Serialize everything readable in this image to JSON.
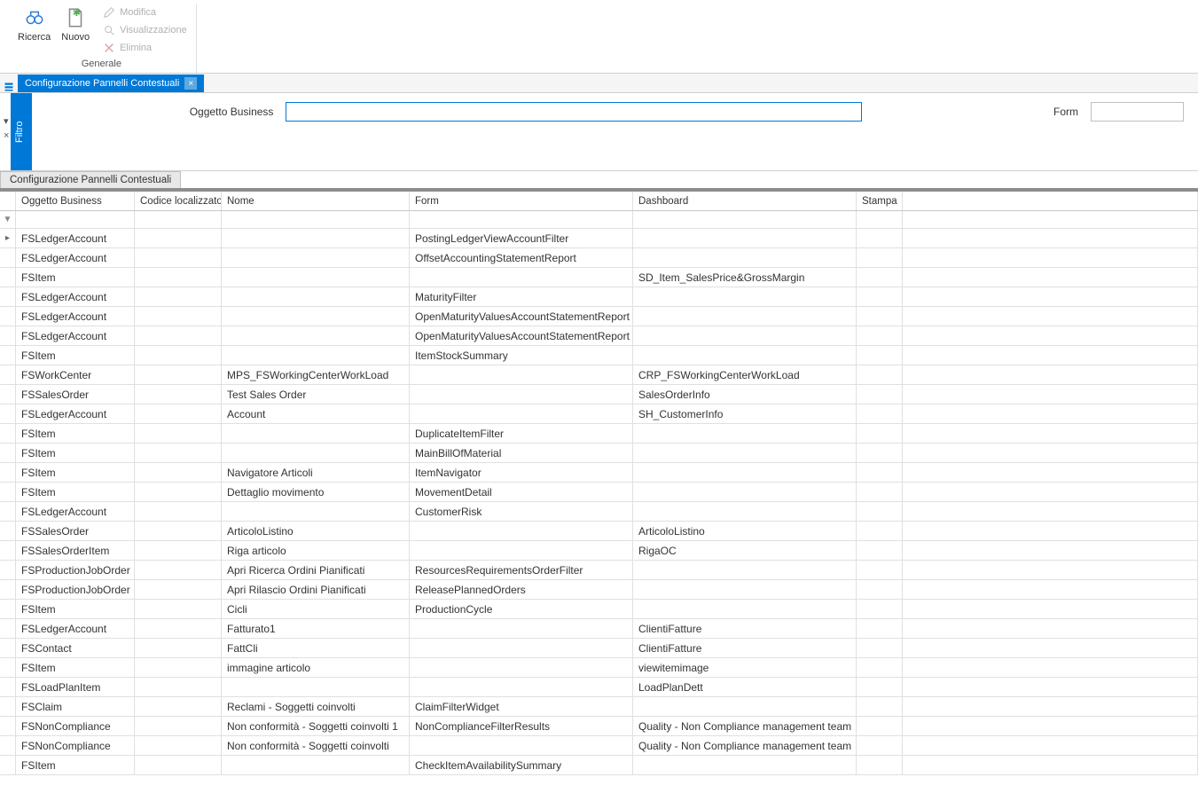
{
  "ribbon": {
    "search": "Ricerca",
    "new": "Nuovo",
    "edit": "Modifica",
    "view": "Visualizzazione",
    "delete": "Elimina",
    "group": "Generale"
  },
  "tab": {
    "title": "Configurazione Pannelli Contestuali"
  },
  "filter": {
    "businessLabel": "Oggetto Business",
    "businessValue": "",
    "formLabel": "Form",
    "formValue": "",
    "sideLabel": "Filtro"
  },
  "section": {
    "tab": "Configurazione Pannelli Contestuali"
  },
  "grid": {
    "columns": {
      "oggetto": "Oggetto Business",
      "codice": "Codice localizzato",
      "nome": "Nome",
      "form": "Form",
      "dashboard": "Dashboard",
      "stampa": "Stampa"
    },
    "rows": [
      {
        "ob": "FSLedgerAccount",
        "cl": "",
        "nome": "",
        "form": "PostingLedgerViewAccountFilter",
        "dash": "",
        "st": "",
        "caret": true
      },
      {
        "ob": "FSLedgerAccount",
        "cl": "",
        "nome": "",
        "form": "OffsetAccountingStatementReport",
        "dash": "",
        "st": ""
      },
      {
        "ob": "FSItem",
        "cl": "",
        "nome": "",
        "form": "",
        "dash": "SD_Item_SalesPrice&GrossMargin",
        "st": ""
      },
      {
        "ob": "FSLedgerAccount",
        "cl": "",
        "nome": "",
        "form": "MaturityFilter",
        "dash": "",
        "st": ""
      },
      {
        "ob": "FSLedgerAccount",
        "cl": "",
        "nome": "",
        "form": "OpenMaturityValuesAccountStatementReport",
        "dash": "",
        "st": ""
      },
      {
        "ob": "FSLedgerAccount",
        "cl": "",
        "nome": "",
        "form": "OpenMaturityValuesAccountStatementReport",
        "dash": "",
        "st": ""
      },
      {
        "ob": "FSItem",
        "cl": "",
        "nome": "",
        "form": "ItemStockSummary",
        "dash": "",
        "st": ""
      },
      {
        "ob": "FSWorkCenter",
        "cl": "",
        "nome": "MPS_FSWorkingCenterWorkLoad",
        "form": "",
        "dash": "CRP_FSWorkingCenterWorkLoad",
        "st": ""
      },
      {
        "ob": "FSSalesOrder",
        "cl": "",
        "nome": "Test Sales Order",
        "form": "",
        "dash": "SalesOrderInfo",
        "st": ""
      },
      {
        "ob": "FSLedgerAccount",
        "cl": "",
        "nome": "Account",
        "form": "",
        "dash": "SH_CustomerInfo",
        "st": ""
      },
      {
        "ob": "FSItem",
        "cl": "",
        "nome": "",
        "form": "DuplicateItemFilter",
        "dash": "",
        "st": ""
      },
      {
        "ob": "FSItem",
        "cl": "",
        "nome": "",
        "form": "MainBillOfMaterial",
        "dash": "",
        "st": ""
      },
      {
        "ob": "FSItem",
        "cl": "",
        "nome": "Navigatore Articoli",
        "form": "ItemNavigator",
        "dash": "",
        "st": ""
      },
      {
        "ob": "FSItem",
        "cl": "",
        "nome": "Dettaglio movimento",
        "form": "MovementDetail",
        "dash": "",
        "st": ""
      },
      {
        "ob": "FSLedgerAccount",
        "cl": "",
        "nome": "",
        "form": "CustomerRisk",
        "dash": "",
        "st": ""
      },
      {
        "ob": "FSSalesOrder",
        "cl": "",
        "nome": "ArticoloListino",
        "form": "",
        "dash": "ArticoloListino",
        "st": ""
      },
      {
        "ob": "FSSalesOrderItem",
        "cl": "",
        "nome": "Riga articolo",
        "form": "",
        "dash": "RigaOC",
        "st": ""
      },
      {
        "ob": "FSProductionJobOrder",
        "cl": "",
        "nome": "Apri Ricerca Ordini Pianificati",
        "form": "ResourcesRequirementsOrderFilter",
        "dash": "",
        "st": ""
      },
      {
        "ob": "FSProductionJobOrder",
        "cl": "",
        "nome": "Apri Rilascio Ordini Pianificati",
        "form": "ReleasePlannedOrders",
        "dash": "",
        "st": ""
      },
      {
        "ob": "FSItem",
        "cl": "",
        "nome": "Cicli",
        "form": "ProductionCycle",
        "dash": "",
        "st": ""
      },
      {
        "ob": "FSLedgerAccount",
        "cl": "",
        "nome": "Fatturato1",
        "form": "",
        "dash": "ClientiFatture",
        "st": ""
      },
      {
        "ob": "FSContact",
        "cl": "",
        "nome": "FattCli",
        "form": "",
        "dash": "ClientiFatture",
        "st": ""
      },
      {
        "ob": "FSItem",
        "cl": "",
        "nome": "immagine articolo",
        "form": "",
        "dash": "viewitemimage",
        "st": ""
      },
      {
        "ob": "FSLoadPlanItem",
        "cl": "",
        "nome": "",
        "form": "",
        "dash": "LoadPlanDett",
        "st": ""
      },
      {
        "ob": "FSClaim",
        "cl": "",
        "nome": "Reclami - Soggetti coinvolti",
        "form": "ClaimFilterWidget",
        "dash": "",
        "st": ""
      },
      {
        "ob": "FSNonCompliance",
        "cl": "",
        "nome": "Non conformità - Soggetti coinvolti 1",
        "form": "NonComplianceFilterResults",
        "dash": "Quality - Non Compliance management team",
        "st": ""
      },
      {
        "ob": "FSNonCompliance",
        "cl": "",
        "nome": "Non conformità - Soggetti coinvolti",
        "form": "",
        "dash": "Quality - Non Compliance management team",
        "st": ""
      },
      {
        "ob": "FSItem",
        "cl": "",
        "nome": "",
        "form": "CheckItemAvailabilitySummary",
        "dash": "",
        "st": ""
      }
    ]
  }
}
